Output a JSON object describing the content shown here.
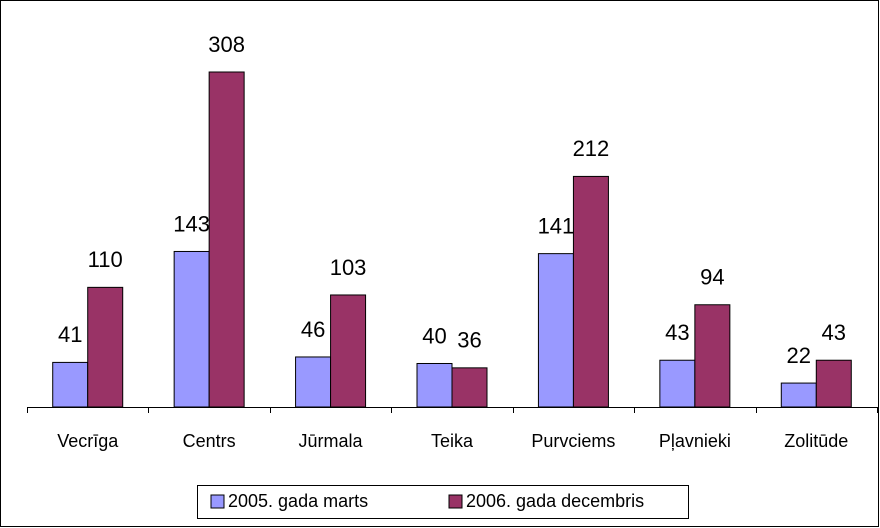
{
  "chart_data": {
    "type": "bar",
    "categories": [
      "Vecrīga",
      "Centrs",
      "Jūrmala",
      "Teika",
      "Purvciems",
      "Pļavnieki",
      "Zolitūde"
    ],
    "series": [
      {
        "name": "2005. gada marts",
        "color": "#9999ff",
        "values": [
          41,
          143,
          46,
          40,
          141,
          43,
          22
        ]
      },
      {
        "name": "2006. gada decembris",
        "color": "#993366",
        "values": [
          110,
          308,
          103,
          36,
          212,
          94,
          43
        ]
      }
    ]
  }
}
